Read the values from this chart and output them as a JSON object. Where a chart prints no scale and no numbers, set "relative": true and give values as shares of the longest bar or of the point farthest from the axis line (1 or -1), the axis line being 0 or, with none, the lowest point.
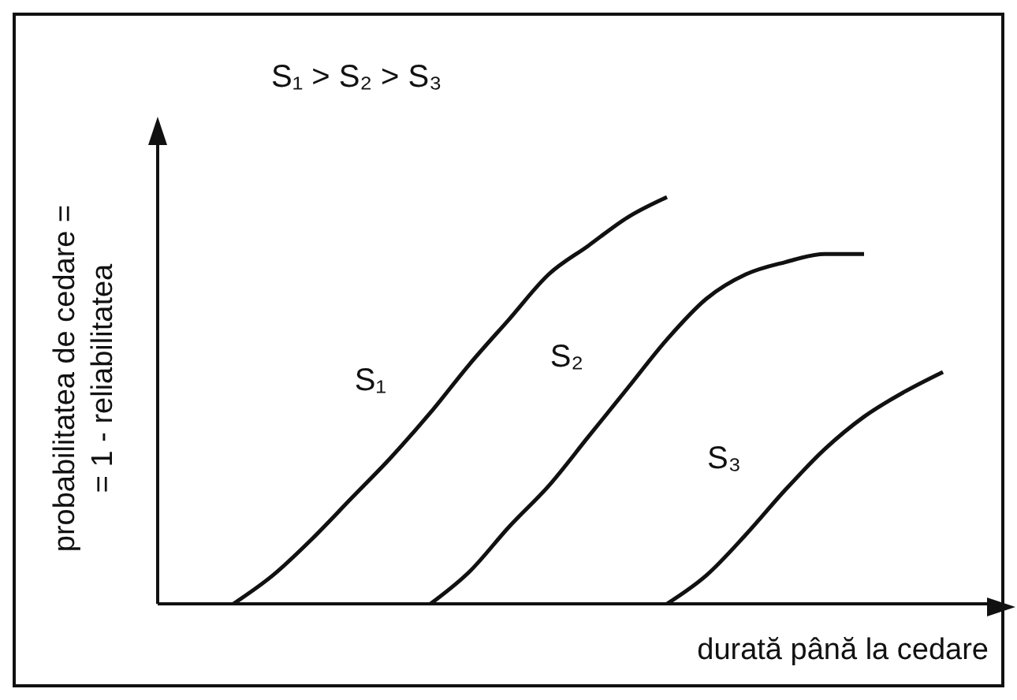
{
  "chart_data": {
    "type": "line",
    "relative": true,
    "xlabel": "durată până la cedare",
    "ylabel": "probabilitatea de cedare =\n= 1 - reliabilitatea",
    "annotations": [
      "S₁ > S₂ > S₃"
    ],
    "marker": "none",
    "line_style": "solid",
    "categories": [
      null,
      null,
      null,
      null,
      null,
      null,
      null,
      null,
      null,
      null,
      null,
      null,
      null,
      null,
      null,
      null,
      null,
      null,
      null
    ],
    "series": [
      {
        "name": "S₁",
        "color": "#111111",
        "values": [
          0,
          0.07,
          0.16,
          0.26,
          0.36,
          0.47,
          0.59,
          0.7,
          0.81,
          0.88,
          0.95,
          1,
          null,
          null,
          null,
          null,
          null,
          null,
          null
        ]
      },
      {
        "name": "S₂",
        "color": "#111111",
        "values": [
          null,
          null,
          null,
          null,
          null,
          0,
          0.08,
          0.19,
          0.29,
          0.41,
          0.53,
          0.65,
          0.75,
          0.81,
          0.84,
          0.86,
          0.86,
          null,
          null
        ]
      },
      {
        "name": "S₃",
        "color": "#111111",
        "values": [
          null,
          null,
          null,
          null,
          null,
          null,
          null,
          null,
          null,
          null,
          null,
          0,
          0.07,
          0.17,
          0.28,
          0.38,
          0.46,
          0.52,
          0.57
        ]
      }
    ]
  }
}
